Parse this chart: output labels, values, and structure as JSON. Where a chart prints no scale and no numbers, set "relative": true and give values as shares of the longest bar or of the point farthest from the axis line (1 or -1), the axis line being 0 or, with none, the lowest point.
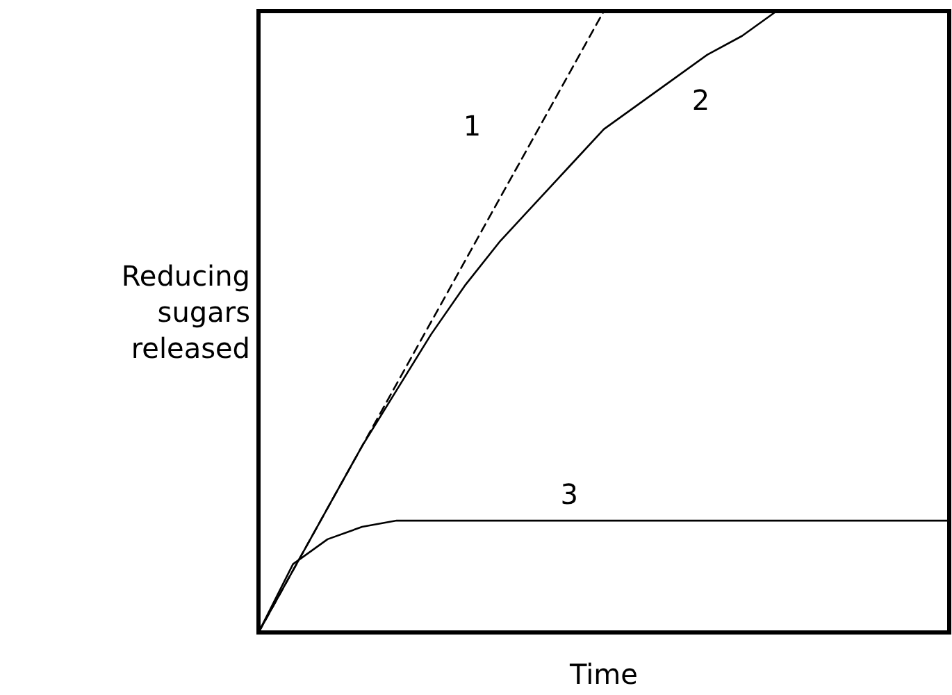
{
  "chart_data": {
    "type": "line",
    "relative": true,
    "xlabel": "Time",
    "ylabel": "Reducing sugars released",
    "tick_labels": false,
    "marker": "none",
    "categories": [
      null,
      null,
      null,
      null,
      null,
      null,
      null,
      null,
      null,
      null,
      null,
      null,
      null,
      null,
      null,
      null,
      null,
      null,
      null,
      null,
      null
    ],
    "series": [
      {
        "name": "1",
        "color": "#000000",
        "line_style": "dashed",
        "values": [
          0,
          0.1,
          0.2,
          0.3,
          0.4,
          0.5,
          0.6,
          0.7,
          0.8,
          0.9,
          1,
          null,
          null,
          null,
          null,
          null,
          null,
          null,
          null,
          null,
          null
        ]
      },
      {
        "name": "2",
        "color": "#000000",
        "line_style": "solid",
        "values": [
          0,
          0.1,
          0.2,
          0.3,
          0.39,
          0.48,
          0.56,
          0.63,
          0.69,
          0.75,
          0.81,
          0.85,
          0.89,
          0.93,
          0.96,
          1,
          null,
          null,
          null,
          null,
          null
        ]
      },
      {
        "name": "3",
        "color": "#000000",
        "line_style": "solid",
        "values": [
          0,
          0.11,
          0.15,
          0.17,
          0.18,
          0.18,
          0.18,
          0.18,
          0.18,
          0.18,
          0.18,
          0.18,
          0.18,
          0.18,
          0.18,
          0.18,
          0.18,
          0.18,
          0.18,
          0.18,
          0.18
        ]
      }
    ]
  }
}
